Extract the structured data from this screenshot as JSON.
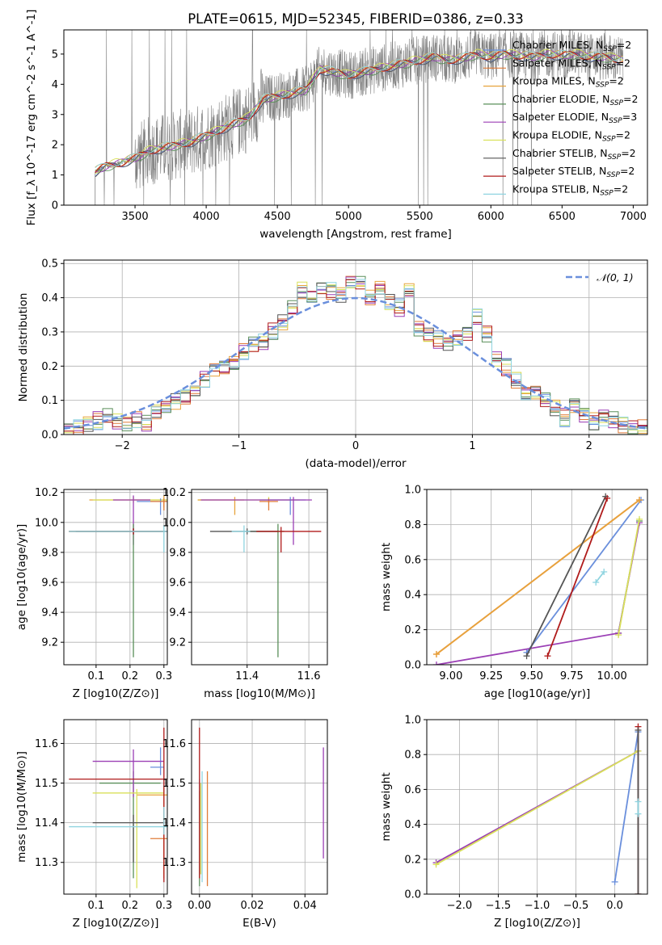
{
  "figure": {
    "title": "PLATE=0615, MJD=52345, FIBERID=0386, z=0.33"
  },
  "chart_data": [
    {
      "panel": "spectrum",
      "type": "line",
      "title": "PLATE=0615, MJD=52345, FIBERID=0386, z=0.33",
      "xlabel": "wavelength [Angstrom, rest frame]",
      "ylabel": "Flux [f_λ 10^-17 erg cm^-2 s^-1 A^-1]",
      "xlim": [
        3000,
        7100
      ],
      "ylim": [
        0,
        5.8
      ],
      "xticks": [
        3500,
        4000,
        4500,
        5000,
        5500,
        6000,
        6500,
        7000
      ],
      "yticks": [
        0,
        1,
        2,
        3,
        4,
        5
      ],
      "data_color": "#808080",
      "model_anchors": {
        "wavelength": [
          3220,
          3300,
          3400,
          3500,
          3600,
          3700,
          3800,
          3900,
          4000,
          4100,
          4200,
          4300,
          4400,
          4500,
          4600,
          4700,
          4800,
          4900,
          5000,
          5100,
          5200,
          5300,
          5400,
          5500,
          5600,
          5700,
          5800,
          5900,
          6000,
          6100,
          6200,
          6300,
          6400,
          6500,
          6600,
          6700,
          6800,
          6930
        ],
        "flux": [
          1.1,
          1.3,
          1.4,
          1.55,
          1.8,
          1.9,
          2.0,
          2.1,
          2.3,
          2.5,
          2.7,
          2.9,
          3.5,
          3.6,
          3.7,
          3.8,
          4.5,
          4.4,
          4.3,
          4.4,
          4.5,
          4.6,
          4.7,
          4.8,
          4.9,
          4.8,
          4.85,
          5.0,
          4.9,
          5.0,
          4.95,
          4.9,
          5.0,
          4.95,
          5.0,
          4.9,
          4.9,
          4.8
        ]
      },
      "legend_position": "upper right",
      "legend": [
        {
          "label": "Chabrier MILES, N",
          "suffix": "=2",
          "color": "#6a8fdc"
        },
        {
          "label": "Salpeter MILES, N",
          "suffix": "=2",
          "color": "#e07b39"
        },
        {
          "label": "Kroupa MILES, N",
          "suffix": "=2",
          "color": "#e8a33c"
        },
        {
          "label": "Chabrier ELODIE, N",
          "suffix": "=2",
          "color": "#5a8f5a"
        },
        {
          "label": "Salpeter ELODIE, N",
          "suffix": "=3",
          "color": "#9b3fb5"
        },
        {
          "label": "Kroupa ELODIE, N",
          "suffix": "=2",
          "color": "#d9e15a"
        },
        {
          "label": "Chabrier STELIB, N",
          "suffix": "=2",
          "color": "#555555"
        },
        {
          "label": "Salpeter STELIB, N",
          "suffix": "=2",
          "color": "#b01b1b"
        },
        {
          "label": "Kroupa STELIB, N",
          "suffix": "=2",
          "color": "#8fd4e0"
        }
      ]
    },
    {
      "panel": "residual-histogram",
      "type": "line",
      "xlabel": "(data-model)/error",
      "ylabel": "Normed distribution",
      "xlim": [
        -2.5,
        2.5
      ],
      "ylim": [
        0,
        0.51
      ],
      "xticks": [
        -2,
        -1,
        0,
        1,
        2
      ],
      "yticks": [
        0.0,
        0.1,
        0.2,
        0.3,
        0.4,
        0.5
      ],
      "legend": "𝒩(0, 1)",
      "gauss_color": "#6a8fdc",
      "hist_base": [
        0.02,
        0.02,
        0.03,
        0.04,
        0.05,
        0.04,
        0.03,
        0.04,
        0.03,
        0.07,
        0.08,
        0.1,
        0.11,
        0.13,
        0.16,
        0.19,
        0.2,
        0.21,
        0.24,
        0.26,
        0.27,
        0.3,
        0.33,
        0.37,
        0.42,
        0.4,
        0.43,
        0.42,
        0.41,
        0.45,
        0.44,
        0.4,
        0.43,
        0.39,
        0.37,
        0.42,
        0.31,
        0.29,
        0.28,
        0.27,
        0.28,
        0.3,
        0.34,
        0.29,
        0.22,
        0.2,
        0.16,
        0.12,
        0.13,
        0.1,
        0.08,
        0.05,
        0.09,
        0.06,
        0.04,
        0.05,
        0.04,
        0.03,
        0.02,
        0.02
      ]
    },
    {
      "panel": "age-vs-Z",
      "type": "scatter",
      "xlabel": "Z [log10(Z/Z⊙)]",
      "ylabel": "age [log10(age/yr)]",
      "xlim": [
        0.005,
        0.31
      ],
      "ylim": [
        9.05,
        10.22
      ],
      "xticks": [
        0.1,
        0.2,
        0.3
      ],
      "yticks": [
        9.2,
        9.4,
        9.6,
        9.8,
        10.0,
        10.2
      ],
      "points": [
        {
          "x": 0.3,
          "y": 10.15,
          "xerr": [
            0.22,
            0.02
          ],
          "yerr": [
            0.05,
            0.03
          ],
          "color": "#e8a33c"
        },
        {
          "x": 0.21,
          "y": 10.15,
          "xerr": [
            0.12,
            0.1
          ],
          "yerr": [
            0.02,
            0.02
          ],
          "color": "#d9e15a"
        },
        {
          "x": 0.29,
          "y": 10.14,
          "xerr": [
            0.07,
            0.02
          ],
          "yerr": [
            0.09,
            0.02
          ],
          "color": "#6a8fdc"
        },
        {
          "x": 0.3,
          "y": 10.14,
          "xerr": [
            0.04,
            0.01
          ],
          "yerr": [
            0.06,
            0.02
          ],
          "color": "#e07b39"
        },
        {
          "x": 0.21,
          "y": 10.15,
          "xerr": [
            0.06,
            0.05
          ],
          "yerr": [
            0.3,
            0.03
          ],
          "color": "#9b3fb5"
        },
        {
          "x": 0.21,
          "y": 9.94,
          "xerr": [
            0.19,
            0.09
          ],
          "yerr": [
            0.84,
            0.05
          ],
          "color": "#5a8f5a"
        },
        {
          "x": 0.21,
          "y": 9.94,
          "xerr": [
            0.17,
            0.1
          ],
          "yerr": [
            0.02,
            0.02
          ],
          "color": "#555555"
        },
        {
          "x": 0.21,
          "y": 9.94,
          "xerr": [
            0.19,
            0.1
          ],
          "yerr": [
            0.02,
            0.02
          ],
          "color": "#b01b1b"
        },
        {
          "x": 0.3,
          "y": 9.94,
          "xerr": [
            0.28,
            0.01
          ],
          "yerr": [
            0.14,
            0.04
          ],
          "color": "#8fd4e0"
        }
      ]
    },
    {
      "panel": "age-vs-mass",
      "type": "scatter",
      "xlabel": "mass [log10(M/M⊙)]",
      "ylabel": "",
      "xlim": [
        11.22,
        11.66
      ],
      "ylim": [
        9.05,
        10.22
      ],
      "xticks": [
        11.4,
        11.6
      ],
      "yticks": [
        9.2,
        9.4,
        9.6,
        9.8,
        10.0,
        10.2
      ],
      "points": [
        {
          "x": 11.47,
          "y": 10.15,
          "xerr": [
            0.23,
            0.1
          ],
          "yerr": [
            0.02,
            0.02
          ],
          "color": "#d9e15a"
        },
        {
          "x": 11.36,
          "y": 10.15,
          "xerr": [
            0.12,
            0.03
          ],
          "yerr": [
            0.1,
            0.02
          ],
          "color": "#e8a33c"
        },
        {
          "x": 11.54,
          "y": 10.15,
          "xerr": [
            0.1,
            0.05
          ],
          "yerr": [
            0.1,
            0.02
          ],
          "color": "#6a8fdc"
        },
        {
          "x": 11.47,
          "y": 10.14,
          "xerr": [
            0.03,
            0.03
          ],
          "yerr": [
            0.06,
            0.02
          ],
          "color": "#e07b39"
        },
        {
          "x": 11.55,
          "y": 10.15,
          "xerr": [
            0.3,
            0.06
          ],
          "yerr": [
            0.3,
            0.02
          ],
          "color": "#9b3fb5"
        },
        {
          "x": 11.5,
          "y": 9.94,
          "xerr": [
            0.1,
            0.02
          ],
          "yerr": [
            0.84,
            0.05
          ],
          "color": "#5a8f5a"
        },
        {
          "x": 11.4,
          "y": 9.94,
          "xerr": [
            0.12,
            0.1
          ],
          "yerr": [
            0.02,
            0.02
          ],
          "color": "#555555"
        },
        {
          "x": 11.51,
          "y": 9.94,
          "xerr": [
            0.08,
            0.13
          ],
          "yerr": [
            0.14,
            0.03
          ],
          "color": "#b01b1b"
        },
        {
          "x": 11.39,
          "y": 9.94,
          "xerr": [
            0.04,
            0.02
          ],
          "yerr": [
            0.14,
            0.04
          ],
          "color": "#8fd4e0"
        }
      ]
    },
    {
      "panel": "mass-weight-vs-age",
      "type": "line",
      "xlabel": "age [log10(age/yr)]",
      "ylabel": "mass weight",
      "xlim": [
        8.85,
        10.22
      ],
      "ylim": [
        0,
        1.0
      ],
      "xticks": [
        9.0,
        9.25,
        9.5,
        9.75,
        10.0
      ],
      "yticks": [
        0.0,
        0.2,
        0.4,
        0.6,
        0.8,
        1.0
      ],
      "series": [
        {
          "x": [
            9.47,
            10.18
          ],
          "y": [
            0.07,
            0.94
          ],
          "color": "#6a8fdc"
        },
        {
          "x": [
            8.91,
            10.17
          ],
          "y": [
            0.06,
            0.94
          ],
          "color": "#e07b39"
        },
        {
          "x": [
            8.91,
            10.17
          ],
          "y": [
            0.06,
            0.94
          ],
          "color": "#e8a33c"
        },
        {
          "x": [
            10.04,
            10.17
          ],
          "y": [
            0.18,
            0.82
          ],
          "color": "#5a8f5a"
        },
        {
          "x": [
            8.91,
            10.04,
            10.17
          ],
          "y": [
            0.0,
            0.18,
            0.81
          ],
          "color": "#9b3fb5"
        },
        {
          "x": [
            10.04,
            10.17
          ],
          "y": [
            0.17,
            0.83
          ],
          "color": "#d9e15a"
        },
        {
          "x": [
            9.47,
            9.96
          ],
          "y": [
            0.05,
            0.96
          ],
          "color": "#555555"
        },
        {
          "x": [
            9.6,
            9.97
          ],
          "y": [
            0.05,
            0.95
          ],
          "color": "#b01b1b"
        },
        {
          "x": [
            9.9,
            9.95
          ],
          "y": [
            0.47,
            0.53
          ],
          "color": "#8fd4e0"
        }
      ]
    },
    {
      "panel": "mass-vs-Z",
      "type": "scatter",
      "xlabel": "Z [log10(Z/Z⊙)]",
      "ylabel": "mass [log10(M/M⊙)]",
      "xlim": [
        0.005,
        0.31
      ],
      "ylim": [
        11.22,
        11.66
      ],
      "xticks": [
        0.1,
        0.2,
        0.3
      ],
      "yticks": [
        11.3,
        11.4,
        11.5,
        11.6
      ],
      "points": [
        {
          "x": 0.29,
          "y": 11.54,
          "xerr": [
            0.03,
            0.01
          ],
          "yerr": [
            0.02,
            0.05
          ],
          "color": "#6a8fdc"
        },
        {
          "x": 0.3,
          "y": 11.36,
          "xerr": [
            0.04,
            0.01
          ],
          "yerr": [
            0.1,
            0.06
          ],
          "color": "#e07b39"
        },
        {
          "x": 0.3,
          "y": 11.47,
          "xerr": [
            0.08,
            0.01
          ],
          "yerr": [
            0.2,
            0.02
          ],
          "color": "#e8a33c"
        },
        {
          "x": 0.21,
          "y": 11.5,
          "xerr": [
            0.1,
            0.08
          ],
          "yerr": [
            0.24,
            0.03
          ],
          "color": "#5a8f5a"
        },
        {
          "x": 0.21,
          "y": 11.555,
          "xerr": [
            0.12,
            0.09
          ],
          "yerr": [
            0.09,
            0.03
          ],
          "color": "#9b3fb5"
        },
        {
          "x": 0.22,
          "y": 11.475,
          "xerr": [
            0.13,
            0.08
          ],
          "yerr": [
            0.24,
            0.01
          ],
          "color": "#d9e15a"
        },
        {
          "x": 0.21,
          "y": 11.4,
          "xerr": [
            0.12,
            0.09
          ],
          "yerr": [
            0.1,
            0.02
          ],
          "color": "#555555"
        },
        {
          "x": 0.3,
          "y": 11.51,
          "xerr": [
            0.28,
            0.01
          ],
          "yerr": [
            0.26,
            0.13
          ],
          "color": "#b01b1b"
        },
        {
          "x": 0.3,
          "y": 11.39,
          "xerr": [
            0.28,
            0.01
          ],
          "yerr": [
            0.02,
            0.05
          ],
          "color": "#8fd4e0"
        }
      ]
    },
    {
      "panel": "mass-vs-EBV",
      "type": "scatter",
      "xlabel": "E(B-V)",
      "ylabel": "",
      "xlim": [
        -0.003,
        0.0485
      ],
      "ylim": [
        11.22,
        11.66
      ],
      "xticks": [
        0.0,
        0.02,
        0.04
      ],
      "yticks": [
        11.3,
        11.4,
        11.5,
        11.6
      ],
      "points": [
        {
          "x": 0.0,
          "y": 11.45,
          "yerr": [
            0.19,
            0.06
          ],
          "color": "#6a8fdc"
        },
        {
          "x": 0.003,
          "y": 11.4,
          "yerr": [
            0.16,
            0.13
          ],
          "color": "#e07b39"
        },
        {
          "x": 0.0,
          "y": 11.43,
          "yerr": [
            0.19,
            0.05
          ],
          "color": "#5a8f5a"
        },
        {
          "x": 0.047,
          "y": 11.45,
          "yerr": [
            0.14,
            0.14
          ],
          "color": "#9b3fb5"
        },
        {
          "x": 0.0005,
          "y": 11.4,
          "yerr": [
            0.13,
            0.1
          ],
          "color": "#d9e15a"
        },
        {
          "x": 0.0,
          "y": 11.45,
          "yerr": [
            0.19,
            0.19
          ],
          "color": "#b01b1b"
        },
        {
          "x": 0.001,
          "y": 11.4,
          "yerr": [
            0.15,
            0.13
          ],
          "color": "#8fd4e0"
        }
      ]
    },
    {
      "panel": "mass-weight-vs-Z",
      "type": "line",
      "xlabel": "Z [log10(Z/Z⊙)]",
      "ylabel": "mass weight",
      "xlim": [
        -2.42,
        0.42
      ],
      "ylim": [
        0,
        1.0
      ],
      "xticks": [
        -2.0,
        -1.5,
        -1.0,
        -0.5,
        0.0
      ],
      "yticks": [
        0.0,
        0.2,
        0.4,
        0.6,
        0.8,
        1.0
      ],
      "series": [
        {
          "x": [
            0.0,
            0.3
          ],
          "y": [
            0.07,
            0.93
          ],
          "color": "#6a8fdc"
        },
        {
          "x": [
            -2.3,
            0.3
          ],
          "y": [
            0.18,
            0.82
          ],
          "color": "#9b3fb5"
        },
        {
          "x": [
            -2.3,
            0.3
          ],
          "y": [
            0.17,
            0.82
          ],
          "color": "#d9e15a"
        },
        {
          "x": [
            0.3,
            0.3
          ],
          "y": [
            0.0,
            0.96
          ],
          "color": "#b01b1b"
        },
        {
          "x": [
            0.3,
            0.3
          ],
          "y": [
            0.0,
            0.94
          ],
          "color": "#555555"
        },
        {
          "x": [
            0.3,
            0.3
          ],
          "y": [
            0.46,
            0.53
          ],
          "color": "#8fd4e0"
        }
      ]
    }
  ]
}
